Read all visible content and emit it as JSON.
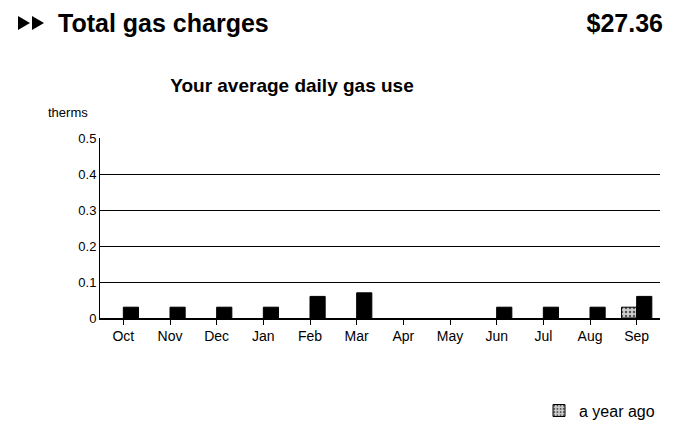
{
  "header": {
    "text": "Total gas charges",
    "amount": "$27.36"
  },
  "chart_data": {
    "type": "bar",
    "title": "Your average daily gas use",
    "ylabel": "therms",
    "categories": [
      "Oct",
      "Nov",
      "Dec",
      "Jan",
      "Feb",
      "Mar",
      "Apr",
      "May",
      "Jun",
      "Jul",
      "Aug",
      "Sep"
    ],
    "series": [
      {
        "name": "a year ago",
        "color": "#d0d0d0",
        "marker": "dots",
        "values": [
          null,
          null,
          null,
          null,
          null,
          null,
          null,
          null,
          null,
          null,
          null,
          0.03
        ]
      },
      {
        "color": "#000000",
        "values": [
          0.03,
          0.03,
          0.03,
          0.03,
          0.06,
          0.07,
          null,
          null,
          0.03,
          0.03,
          0.03,
          0.06
        ]
      }
    ],
    "ylim": [
      0,
      0.5
    ],
    "yticks": [
      0,
      0.1,
      0.2,
      0.3,
      0.4,
      0.5
    ],
    "grid": true,
    "legend": "bottom right"
  }
}
